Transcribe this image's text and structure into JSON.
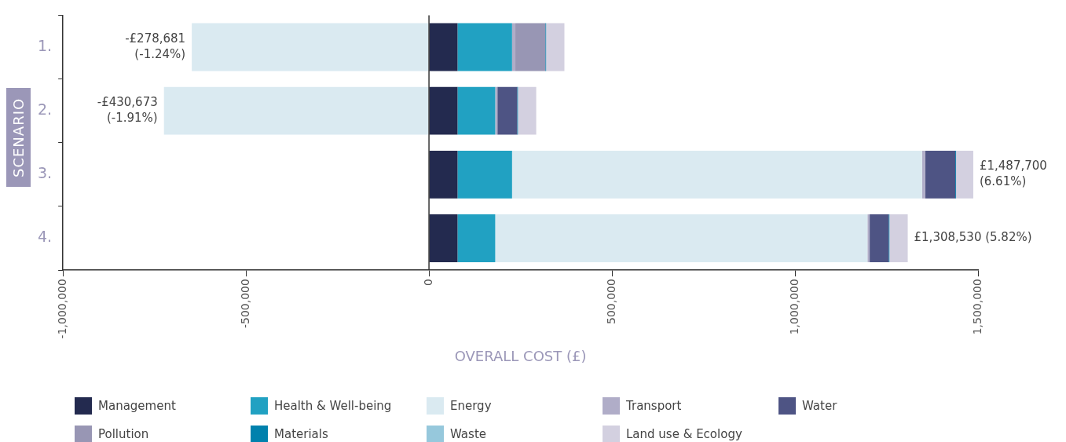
{
  "chart_data": {
    "type": "bar",
    "orientation": "horizontal",
    "stacked": true,
    "categories": [
      "1.",
      "2.",
      "3.",
      "4."
    ],
    "series": [
      {
        "name": "Management",
        "color": "#232a4f",
        "values": [
          78000,
          78000,
          78000,
          78000
        ]
      },
      {
        "name": "Health & Well-being",
        "color": "#21a1c2",
        "values": [
          149000,
          103000,
          149000,
          103000
        ]
      },
      {
        "name": "Energy",
        "color": "#daeaf1",
        "values": [
          -648000,
          -724000,
          1120000,
          1017000
        ]
      },
      {
        "name": "Transport",
        "color": "#b0adc8",
        "values": [
          9000,
          6000,
          9000,
          6000
        ]
      },
      {
        "name": "Water",
        "color": "#4e5484",
        "values": [
          0,
          54000,
          82000,
          52000
        ]
      },
      {
        "name": "Pollution",
        "color": "#9896b4",
        "values": [
          82000,
          0,
          0,
          0
        ]
      },
      {
        "name": "Materials",
        "color": "#0081ad",
        "values": [
          2000,
          2000,
          2000,
          2000
        ]
      },
      {
        "name": "Waste",
        "color": "#96c8dc",
        "values": [
          0,
          0,
          0,
          0
        ]
      },
      {
        "name": "Land use & Ecology",
        "color": "#d3d0e0",
        "values": [
          50000,
          50000,
          47000,
          50000
        ]
      }
    ],
    "xlabel": "OVERALL COST (£)",
    "ylabel": "SCENARIO",
    "xlim": [
      -1000000,
      1500000
    ],
    "xticks": [
      {
        "value": -1000000,
        "label": "-1,000,000"
      },
      {
        "value": -500000,
        "label": "-500,000"
      },
      {
        "value": 0,
        "label": "0"
      },
      {
        "value": 500000,
        "label": "500,000"
      },
      {
        "value": 1000000,
        "label": "1,000,000"
      },
      {
        "value": 1500000,
        "label": "1,500,000"
      }
    ],
    "ref_lines": [
      {
        "axis": "x",
        "value": 0,
        "color": "#333333"
      }
    ],
    "annotations": [
      "-£278,681\n(-1.24%)",
      "-£430,673\n(-1.91%)",
      "£1,487,700\n(6.61%)",
      "£1,308,530 (5.82%)"
    ],
    "grid": false,
    "legend": "bottom"
  }
}
